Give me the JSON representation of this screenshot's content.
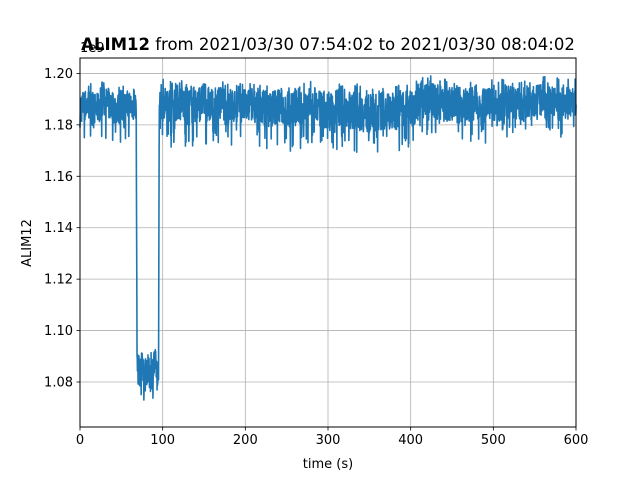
{
  "chart_data": {
    "type": "line",
    "title_bold": "ALIM12",
    "title_rest": " from 2021/03/30 07:54:02 to 2021/03/30 08:04:02",
    "xlabel": "time (s)",
    "ylabel": "ALIM12",
    "y_offset_label": "1e9",
    "xlim": [
      0,
      600
    ],
    "ylim": [
      1.0625,
      1.206
    ],
    "x_ticks": [
      0,
      100,
      200,
      300,
      400,
      500,
      600
    ],
    "x_tick_labels": [
      "0",
      "100",
      "200",
      "300",
      "400",
      "500",
      "600"
    ],
    "y_ticks": [
      1.08,
      1.1,
      1.12,
      1.14,
      1.16,
      1.18,
      1.2
    ],
    "y_tick_labels": [
      "1.08",
      "1.10",
      "1.12",
      "1.14",
      "1.16",
      "1.18",
      "1.20"
    ],
    "grid": true,
    "line_color": "#1f77b4",
    "series": [
      {
        "x": [
          0,
          10,
          20,
          30,
          40,
          50,
          60,
          68,
          69,
          70,
          75,
          80,
          85,
          90,
          95,
          96,
          97,
          98,
          100,
          110,
          120,
          130,
          140,
          150,
          160,
          170,
          180,
          190,
          200,
          210,
          220,
          230,
          240,
          250,
          260,
          270,
          280,
          290,
          300,
          310,
          320,
          330,
          340,
          350,
          360,
          370,
          380,
          390,
          400,
          410,
          420,
          430,
          440,
          450,
          460,
          470,
          480,
          490,
          500,
          510,
          520,
          530,
          540,
          550,
          560,
          570,
          580,
          590,
          600
        ],
        "y": [
          1.187,
          1.188,
          1.186,
          1.189,
          1.187,
          1.186,
          1.188,
          1.187,
          1.09,
          1.085,
          1.083,
          1.086,
          1.082,
          1.087,
          1.084,
          1.19,
          1.188,
          1.189,
          1.189,
          1.188,
          1.189,
          1.187,
          1.188,
          1.189,
          1.187,
          1.188,
          1.186,
          1.188,
          1.187,
          1.188,
          1.187,
          1.186,
          1.188,
          1.186,
          1.187,
          1.186,
          1.188,
          1.186,
          1.185,
          1.187,
          1.186,
          1.186,
          1.185,
          1.184,
          1.185,
          1.186,
          1.185,
          1.187,
          1.186,
          1.189,
          1.19,
          1.189,
          1.188,
          1.188,
          1.187,
          1.188,
          1.189,
          1.187,
          1.188,
          1.188,
          1.189,
          1.188,
          1.189,
          1.189,
          1.19,
          1.189,
          1.188,
          1.189,
          1.189
        ],
        "band_upper": [
          1.196,
          1.196,
          1.196,
          1.197,
          1.196,
          1.195,
          1.196,
          1.195,
          1.094,
          1.093,
          1.092,
          1.094,
          1.093,
          1.095,
          1.094,
          1.2,
          1.199,
          1.198,
          1.198,
          1.197,
          1.198,
          1.196,
          1.197,
          1.198,
          1.196,
          1.197,
          1.196,
          1.197,
          1.196,
          1.197,
          1.196,
          1.196,
          1.197,
          1.196,
          1.197,
          1.196,
          1.197,
          1.196,
          1.196,
          1.197,
          1.196,
          1.197,
          1.195,
          1.195,
          1.196,
          1.196,
          1.195,
          1.196,
          1.196,
          1.198,
          1.2,
          1.199,
          1.198,
          1.198,
          1.197,
          1.198,
          1.199,
          1.197,
          1.198,
          1.198,
          1.199,
          1.198,
          1.199,
          1.198,
          1.199,
          1.199,
          1.198,
          1.198,
          1.198
        ],
        "band_lower": [
          1.172,
          1.174,
          1.174,
          1.175,
          1.173,
          1.173,
          1.174,
          1.174,
          1.079,
          1.071,
          1.072,
          1.07,
          1.071,
          1.069,
          1.079,
          1.177,
          1.176,
          1.172,
          1.175,
          1.171,
          1.172,
          1.169,
          1.171,
          1.172,
          1.17,
          1.172,
          1.171,
          1.172,
          1.171,
          1.172,
          1.17,
          1.169,
          1.171,
          1.17,
          1.168,
          1.169,
          1.171,
          1.17,
          1.166,
          1.17,
          1.169,
          1.17,
          1.168,
          1.167,
          1.169,
          1.168,
          1.168,
          1.17,
          1.17,
          1.173,
          1.176,
          1.174,
          1.173,
          1.173,
          1.172,
          1.173,
          1.175,
          1.172,
          1.175,
          1.175,
          1.174,
          1.175,
          1.176,
          1.176,
          1.177,
          1.176,
          1.175,
          1.176,
          1.177
        ]
      }
    ]
  }
}
